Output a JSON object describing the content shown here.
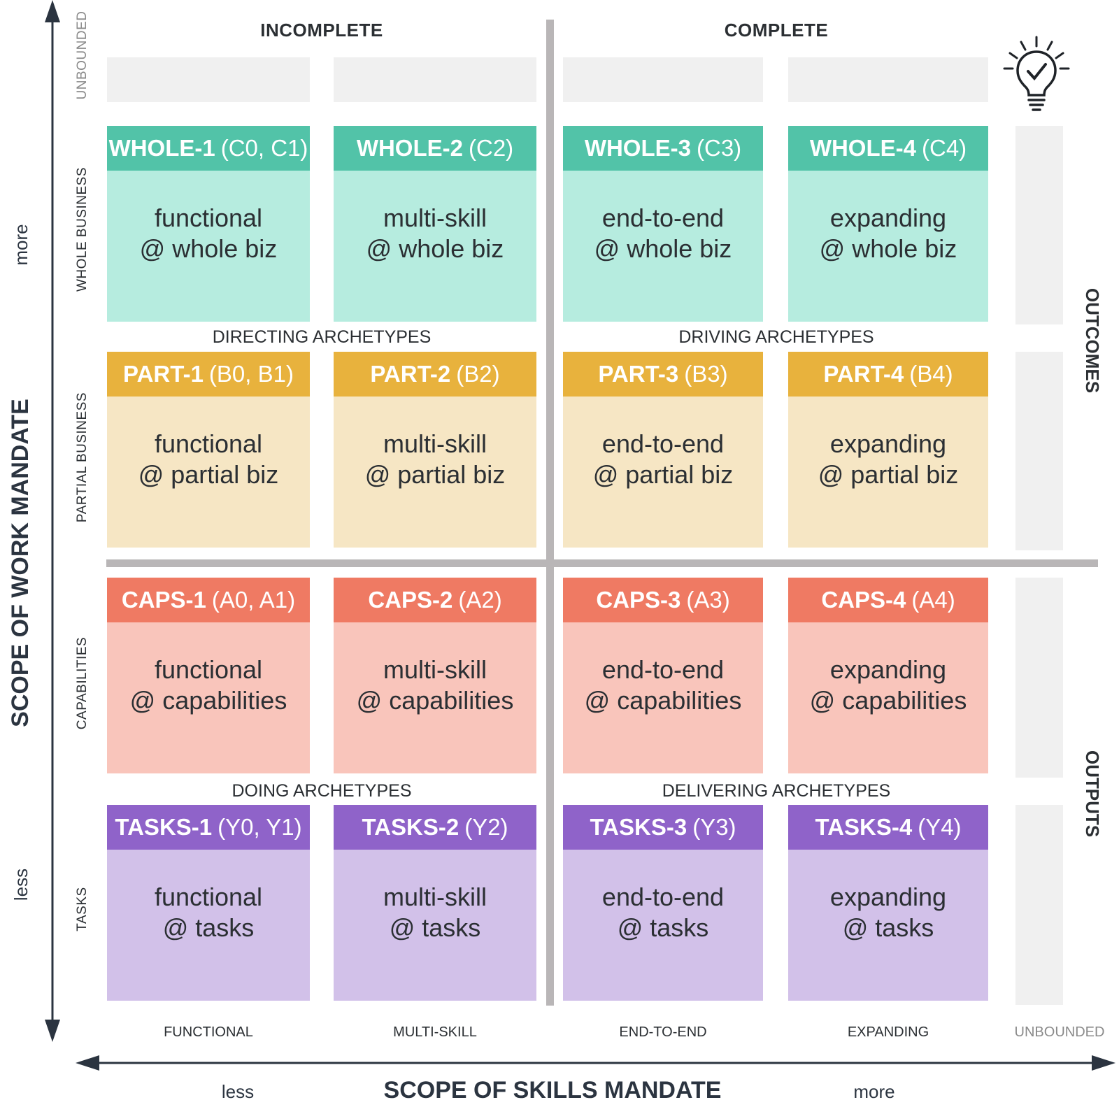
{
  "columns": {
    "incomplete": "INCOMPLETE",
    "complete": "COMPLETE"
  },
  "row_labels": {
    "unbounded": "UNBOUNDED",
    "whole_business": "WHOLE BUSINESS",
    "partial_business": "PARTIAL BUSINESS",
    "capabilities": "CAPABILITIES",
    "tasks": "TASKS"
  },
  "y_axis": {
    "title": "SCOPE OF WORK MANDATE",
    "more": "more",
    "less": "less"
  },
  "x_axis": {
    "title": "SCOPE OF SKILLS MANDATE",
    "less": "less",
    "more": "more"
  },
  "x_labels": [
    "FUNCTIONAL",
    "MULTI-SKILL",
    "END-TO-END",
    "EXPANDING",
    "UNBOUNDED"
  ],
  "archetypes": {
    "directing": "DIRECTING ARCHETYPES",
    "driving": "DRIVING ARCHETYPES",
    "doing": "DOING ARCHETYPES",
    "delivering": "DELIVERING ARCHETYPES"
  },
  "side_labels": {
    "outcomes": "OUTCOMES",
    "outputs": "OUTPUTS"
  },
  "rows": {
    "whole": [
      {
        "code": "WHOLE-1",
        "levels": "(C0, C1)",
        "line1": "functional",
        "line2": "@ whole biz"
      },
      {
        "code": "WHOLE-2",
        "levels": "(C2)",
        "line1": "multi-skill",
        "line2": "@ whole biz"
      },
      {
        "code": "WHOLE-3",
        "levels": "(C3)",
        "line1": "end-to-end",
        "line2": "@ whole biz"
      },
      {
        "code": "WHOLE-4",
        "levels": "(C4)",
        "line1": "expanding",
        "line2": "@ whole biz"
      }
    ],
    "part": [
      {
        "code": "PART-1",
        "levels": "(B0, B1)",
        "line1": "functional",
        "line2": "@ partial biz"
      },
      {
        "code": "PART-2",
        "levels": "(B2)",
        "line1": "multi-skill",
        "line2": "@ partial biz"
      },
      {
        "code": "PART-3",
        "levels": "(B3)",
        "line1": "end-to-end",
        "line2": "@ partial biz"
      },
      {
        "code": "PART-4",
        "levels": "(B4)",
        "line1": "expanding",
        "line2": "@ partial biz"
      }
    ],
    "caps": [
      {
        "code": "CAPS-1",
        "levels": "(A0, A1)",
        "line1": "functional",
        "line2": "@ capabilities"
      },
      {
        "code": "CAPS-2",
        "levels": "(A2)",
        "line1": "multi-skill",
        "line2": "@ capabilities"
      },
      {
        "code": "CAPS-3",
        "levels": "(A3)",
        "line1": "end-to-end",
        "line2": "@ capabilities"
      },
      {
        "code": "CAPS-4",
        "levels": "(A4)",
        "line1": "expanding",
        "line2": "@ capabilities"
      }
    ],
    "tasks": [
      {
        "code": "TASKS-1",
        "levels": "(Y0, Y1)",
        "line1": "functional",
        "line2": "@ tasks"
      },
      {
        "code": "TASKS-2",
        "levels": "(Y2)",
        "line1": "multi-skill",
        "line2": "@ tasks"
      },
      {
        "code": "TASKS-3",
        "levels": "(Y3)",
        "line1": "end-to-end",
        "line2": "@ tasks"
      },
      {
        "code": "TASKS-4",
        "levels": "(Y4)",
        "line1": "expanding",
        "line2": "@ tasks"
      }
    ]
  },
  "icons": {
    "idea": "lightbulb-check-icon"
  },
  "colors": {
    "whole_header": "#52c3a8",
    "whole_body": "#b6ecdf",
    "part_header": "#e8b23d",
    "part_body": "#f6e6c4",
    "caps_header": "#ef7a63",
    "caps_body": "#f9c5bb",
    "tasks_header": "#8f63c9",
    "tasks_body": "#d2c1e9"
  }
}
